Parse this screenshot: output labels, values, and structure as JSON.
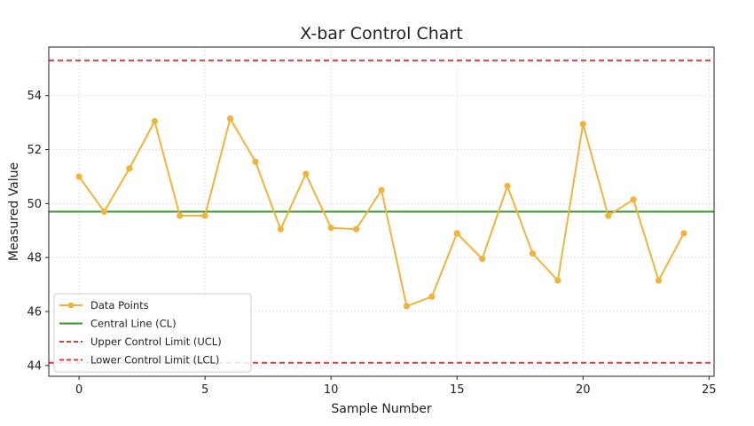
{
  "chart_data": {
    "type": "line",
    "title": "X-bar Control Chart",
    "xlabel": "Sample Number",
    "ylabel": "Measured Value",
    "xlim": [
      -1.2,
      25.2
    ],
    "ylim": [
      43.6,
      55.8
    ],
    "xticks": [
      0,
      5,
      10,
      15,
      20,
      25
    ],
    "yticks": [
      44,
      46,
      48,
      50,
      52,
      54
    ],
    "grid": true,
    "legend_position": "lower-left",
    "series": [
      {
        "name": "Data Points",
        "color": "#f0b43c",
        "x": [
          0,
          1,
          2,
          3,
          4,
          5,
          6,
          7,
          8,
          9,
          10,
          11,
          12,
          13,
          14,
          15,
          16,
          17,
          18,
          19,
          20,
          21,
          22,
          23,
          24
        ],
        "values": [
          51.0,
          49.7,
          51.3,
          53.05,
          49.55,
          49.55,
          53.15,
          51.55,
          49.05,
          51.1,
          49.1,
          49.05,
          50.5,
          46.2,
          46.55,
          48.9,
          47.95,
          50.65,
          48.15,
          47.15,
          52.95,
          49.55,
          50.15,
          47.15,
          48.9
        ]
      }
    ],
    "reference_lines": [
      {
        "name": "Central Line (CL)",
        "value": 49.7,
        "color": "#3a9a2e",
        "style": "solid"
      },
      {
        "name": "Upper Control Limit (UCL)",
        "value": 55.3,
        "color": "#e03a3a",
        "style": "dashed"
      },
      {
        "name": "Lower Control Limit (LCL)",
        "value": 44.1,
        "color": "#e03a3a",
        "style": "dashed"
      }
    ]
  }
}
